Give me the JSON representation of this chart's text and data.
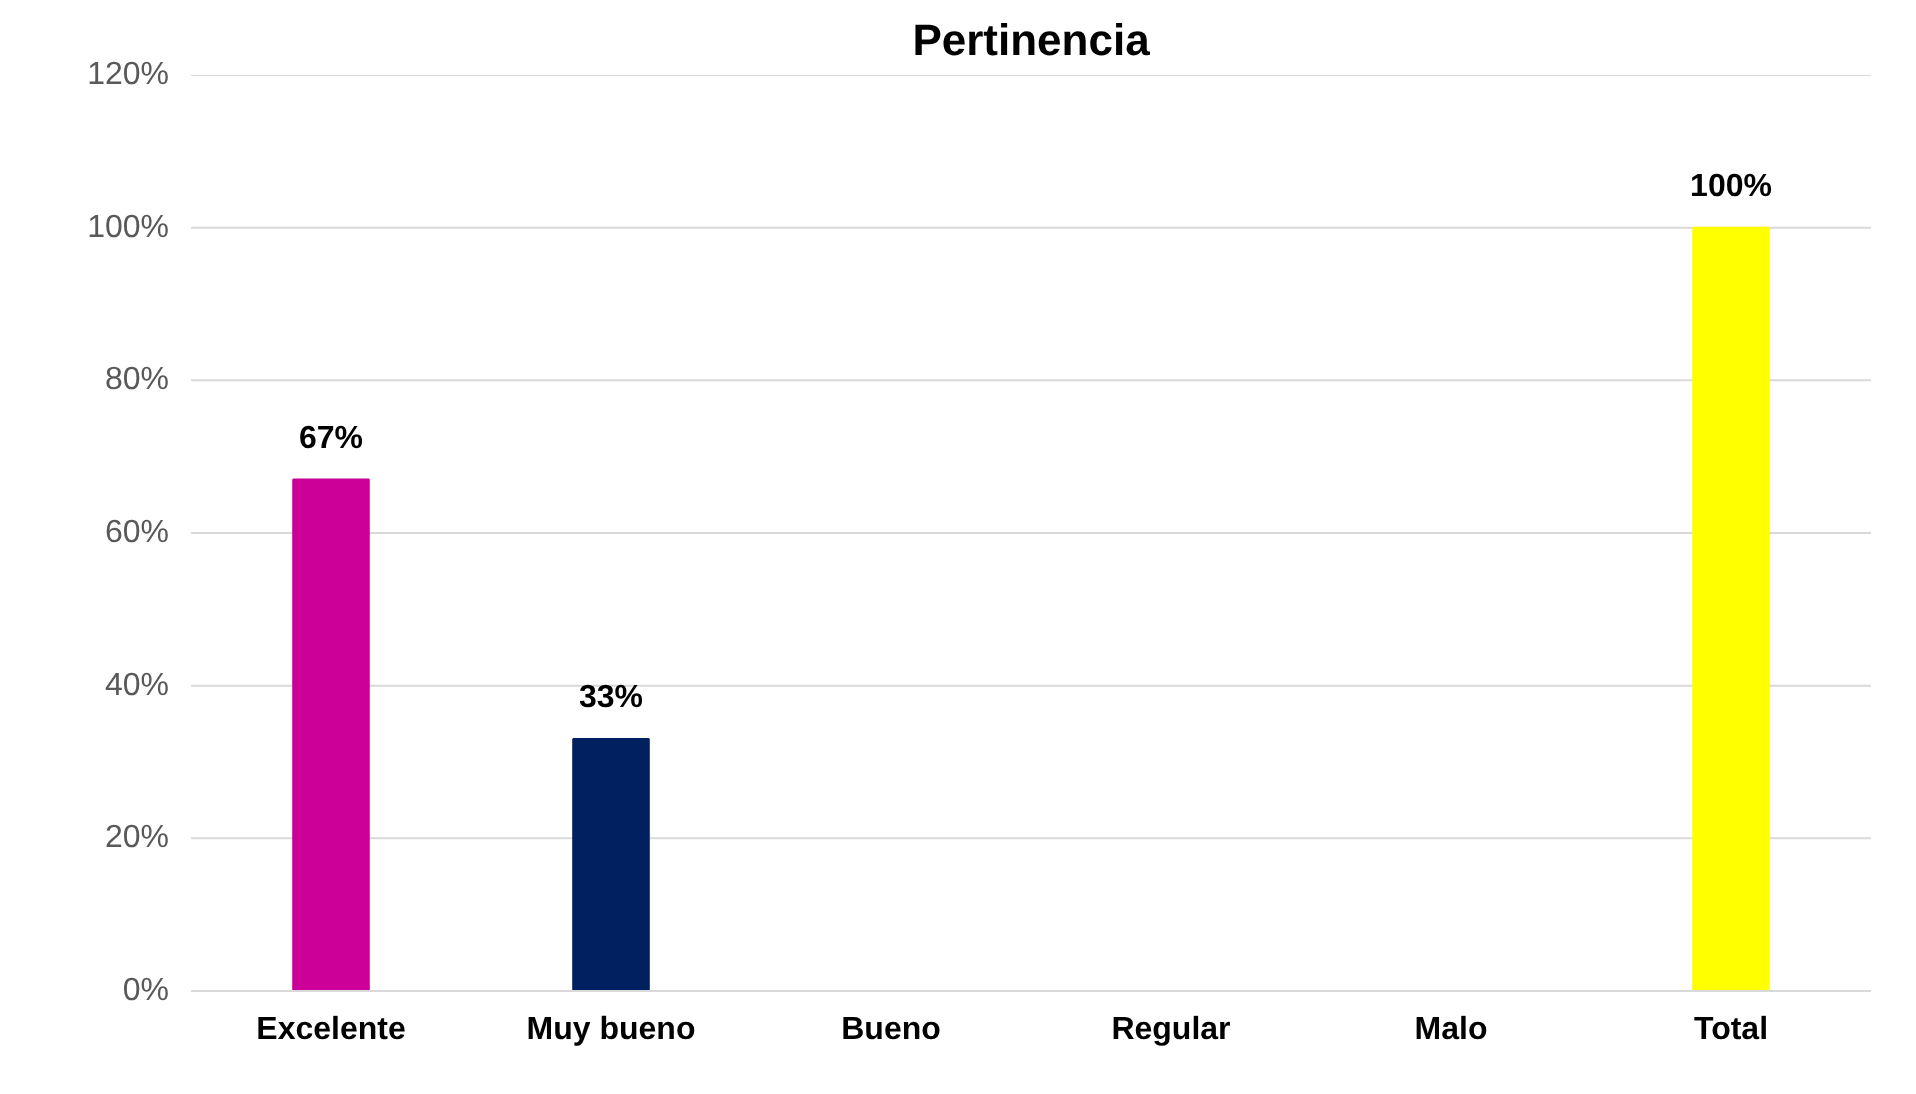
{
  "chart_data": {
    "type": "bar",
    "title": "Pertinencia",
    "categories": [
      "Excelente",
      "Muy bueno",
      "Bueno",
      "Regular",
      "Malo",
      "Total"
    ],
    "values": [
      67,
      33,
      0,
      0,
      0,
      100
    ],
    "colors": [
      "#cc0099",
      "#002060",
      "#7f7f7f",
      "#7f7f7f",
      "#7f7f7f",
      "#ffff00"
    ],
    "value_labels": [
      "67%",
      "33%",
      null,
      null,
      null,
      "100%"
    ],
    "ylim": [
      0,
      120
    ],
    "yticks": [
      {
        "value": 0,
        "label": "0%"
      },
      {
        "value": 20,
        "label": "20%"
      },
      {
        "value": 40,
        "label": "40%"
      },
      {
        "value": 60,
        "label": "60%"
      },
      {
        "value": 80,
        "label": "80%"
      },
      {
        "value": 100,
        "label": "100%"
      },
      {
        "value": 120,
        "label": "120%"
      }
    ],
    "grid": "y"
  }
}
